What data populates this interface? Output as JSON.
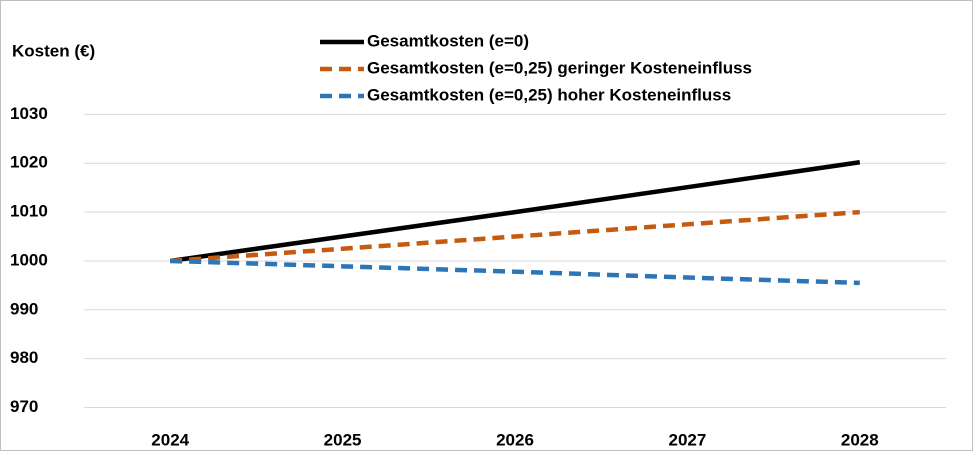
{
  "chart_data": {
    "type": "line",
    "y_label": "Kosten (€)",
    "categories": [
      "2024",
      "2025",
      "2026",
      "2027",
      "2028"
    ],
    "series": [
      {
        "name": "Gesamtkosten (e=0)",
        "color": "#000000",
        "dash": "solid",
        "values": [
          1000,
          1005,
          1010,
          1015.1,
          1020.2
        ]
      },
      {
        "name": "Gesamtkosten (e=0,25) geringer Kosteneinfluss",
        "color": "#c55a11",
        "dash": "dashed",
        "values": [
          1000,
          1002.5,
          1005,
          1007.5,
          1010
        ]
      },
      {
        "name": "Gesamtkosten (e=0,25) hoher Kosteneinfluss",
        "color": "#2e75b6",
        "dash": "dashed",
        "values": [
          1000,
          998.9,
          997.8,
          996.6,
          995.5
        ]
      }
    ],
    "ylim": [
      966,
      1035
    ],
    "yticks": [
      970,
      980,
      990,
      1000,
      1010,
      1020,
      1030
    ],
    "grid": true
  }
}
